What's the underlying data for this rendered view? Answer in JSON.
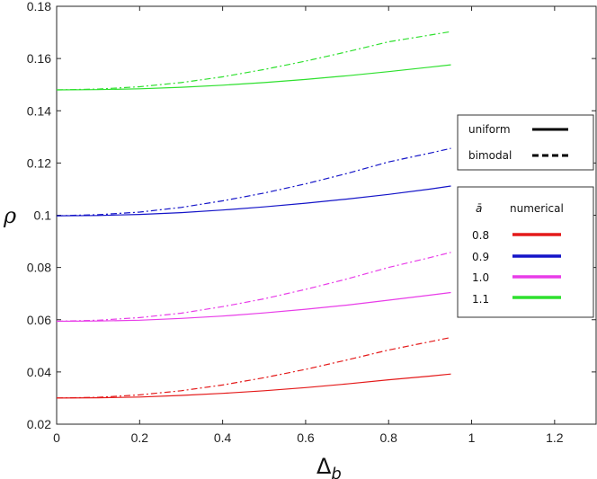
{
  "chart_data": {
    "type": "line",
    "xlabel": "Δb",
    "xlabel_main": "Δ",
    "xlabel_sub": "b",
    "ylabel": "ρ",
    "xlim": [
      0,
      1.3
    ],
    "ylim": [
      0.02,
      0.18
    ],
    "xticks": [
      0,
      0.2,
      0.4,
      0.6,
      0.8,
      1,
      1.2
    ],
    "xtick_labels": [
      "0",
      "0.2",
      "0.4",
      "0.6",
      "0.8",
      "1",
      "1.2"
    ],
    "yticks": [
      0.02,
      0.04,
      0.06,
      0.08,
      0.1,
      0.12,
      0.14,
      0.16,
      0.18
    ],
    "ytick_labels": [
      "0.02",
      "0.04",
      "0.06",
      "0.08",
      "0.1",
      "0.12",
      "0.14",
      "0.16",
      "0.18"
    ],
    "grid": false,
    "legend_style": {
      "position": "right",
      "entries": [
        {
          "label": "uniform",
          "dash": "solid"
        },
        {
          "label": "bimodal",
          "dash": "dashed"
        }
      ]
    },
    "legend_color": {
      "position": "right",
      "header_symbol": "ā",
      "header_label": "numerical",
      "entries": [
        {
          "label": "0.8",
          "color": "#e41a1a"
        },
        {
          "label": "0.9",
          "color": "#1414c8"
        },
        {
          "label": "1.0",
          "color": "#e83ce8"
        },
        {
          "label": "1.1",
          "color": "#2ee02e"
        }
      ]
    },
    "series": [
      {
        "group": "0.8",
        "style": "uniform",
        "color": "#e41a1a",
        "x": [
          0,
          0.1,
          0.2,
          0.3,
          0.4,
          0.5,
          0.6,
          0.7,
          0.8,
          0.9,
          0.95
        ],
        "y": [
          0.03,
          0.0301,
          0.0304,
          0.031,
          0.0318,
          0.0328,
          0.034,
          0.0354,
          0.037,
          0.0384,
          0.0392
        ]
      },
      {
        "group": "0.8",
        "style": "bimodal",
        "color": "#e41a1a",
        "x": [
          0,
          0.1,
          0.2,
          0.3,
          0.4,
          0.5,
          0.6,
          0.7,
          0.8,
          0.9,
          0.95
        ],
        "y": [
          0.03,
          0.0303,
          0.0312,
          0.0328,
          0.035,
          0.0378,
          0.041,
          0.0446,
          0.0484,
          0.0516,
          0.0532
        ]
      },
      {
        "group": "0.9",
        "style": "uniform",
        "color": "#1414c8",
        "x": [
          0,
          0.1,
          0.2,
          0.3,
          0.4,
          0.5,
          0.6,
          0.7,
          0.8,
          0.9,
          0.95
        ],
        "y": [
          0.0998,
          0.0999,
          0.1003,
          0.101,
          0.102,
          0.1032,
          0.1046,
          0.1062,
          0.108,
          0.11,
          0.1112
        ]
      },
      {
        "group": "0.9",
        "style": "bimodal",
        "color": "#1414c8",
        "x": [
          0,
          0.1,
          0.2,
          0.3,
          0.4,
          0.5,
          0.6,
          0.7,
          0.8,
          0.9,
          0.95
        ],
        "y": [
          0.0998,
          0.1002,
          0.1012,
          0.103,
          0.1055,
          0.1085,
          0.112,
          0.116,
          0.1204,
          0.1238,
          0.1256
        ]
      },
      {
        "group": "1.0",
        "style": "uniform",
        "color": "#e83ce8",
        "x": [
          0,
          0.1,
          0.2,
          0.3,
          0.4,
          0.5,
          0.6,
          0.7,
          0.8,
          0.9,
          0.95
        ],
        "y": [
          0.0594,
          0.0595,
          0.0598,
          0.0605,
          0.0614,
          0.0626,
          0.064,
          0.0656,
          0.0675,
          0.0694,
          0.0704
        ]
      },
      {
        "group": "1.0",
        "style": "bimodal",
        "color": "#e83ce8",
        "x": [
          0,
          0.1,
          0.2,
          0.3,
          0.4,
          0.5,
          0.6,
          0.7,
          0.8,
          0.9,
          0.95
        ],
        "y": [
          0.0594,
          0.0598,
          0.0608,
          0.0625,
          0.065,
          0.068,
          0.0716,
          0.0756,
          0.08,
          0.0838,
          0.0858
        ]
      },
      {
        "group": "1.1",
        "style": "uniform",
        "color": "#2ee02e",
        "x": [
          0,
          0.1,
          0.2,
          0.3,
          0.4,
          0.5,
          0.6,
          0.7,
          0.8,
          0.9,
          0.95
        ],
        "y": [
          0.148,
          0.1481,
          0.1484,
          0.149,
          0.1498,
          0.1508,
          0.152,
          0.1534,
          0.155,
          0.1567,
          0.1576
        ]
      },
      {
        "group": "1.1",
        "style": "bimodal",
        "color": "#2ee02e",
        "x": [
          0,
          0.1,
          0.2,
          0.3,
          0.4,
          0.5,
          0.6,
          0.7,
          0.8,
          0.9,
          0.95
        ],
        "y": [
          0.148,
          0.1483,
          0.1492,
          0.1508,
          0.153,
          0.1558,
          0.159,
          0.1626,
          0.1664,
          0.169,
          0.1703
        ]
      }
    ]
  }
}
